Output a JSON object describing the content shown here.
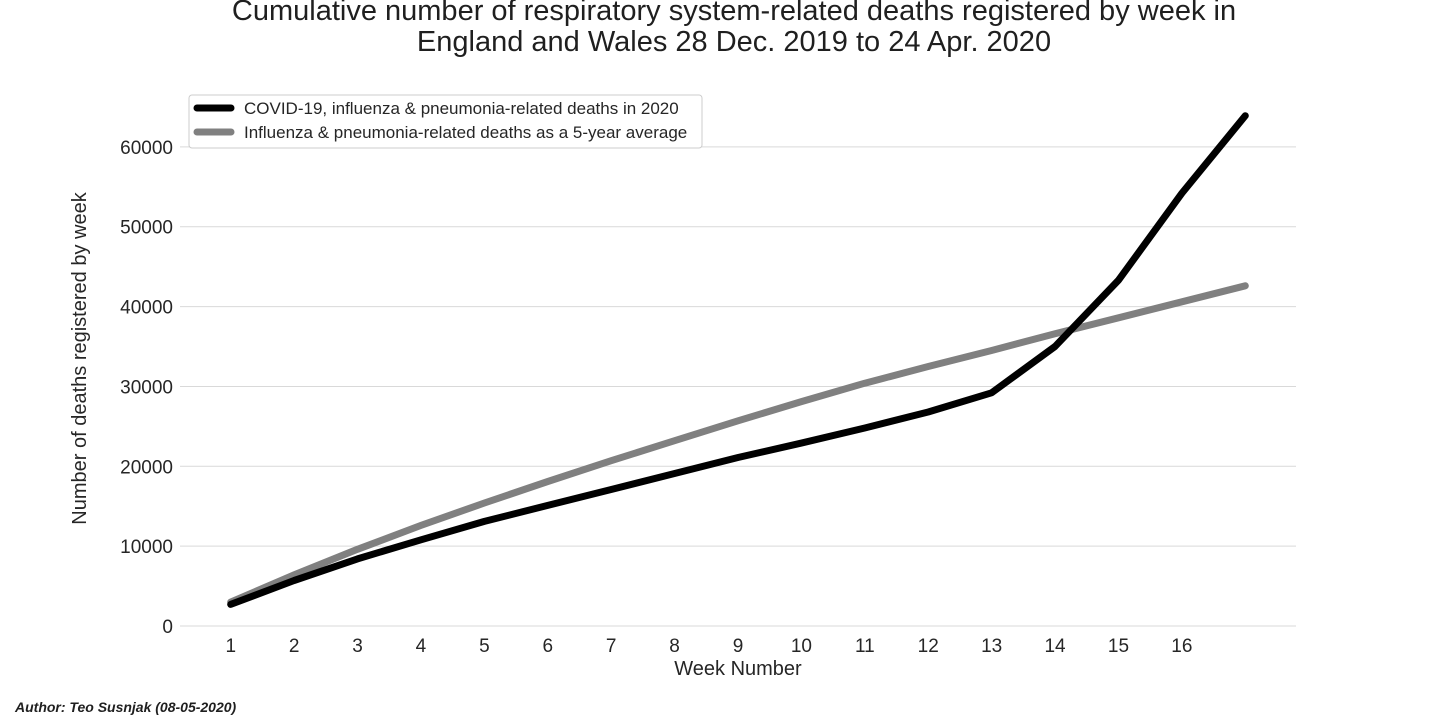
{
  "chart_data": {
    "type": "line",
    "title": "Cumulative number of respiratory system-related deaths registered by week in\nEngland and Wales  28 Dec. 2019 to 24 Apr. 2020",
    "xlabel": "Week Number",
    "ylabel": "Number of deaths registered by week",
    "x_ticks": [
      "1",
      "2",
      "3",
      "4",
      "5",
      "6",
      "7",
      "8",
      "9",
      "10",
      "11",
      "12",
      "13",
      "14",
      "15",
      "16"
    ],
    "y_ticks": [
      0,
      10000,
      20000,
      30000,
      40000,
      50000,
      60000
    ],
    "xlim": [
      0.2,
      17.8
    ],
    "ylim": [
      -500,
      69000
    ],
    "grid": "horizontal",
    "legend_position": "top-left",
    "x": [
      1,
      2,
      3,
      4,
      5,
      6,
      7,
      8,
      9,
      10,
      11,
      12,
      13,
      14,
      15,
      16,
      17
    ],
    "series": [
      {
        "name": "COVID-19, influenza & pneumonia-related deaths in 2020",
        "color": "#000000",
        "values": [
          2700,
          5700,
          8400,
          10800,
          13100,
          15100,
          17100,
          19100,
          21100,
          22900,
          24800,
          26800,
          29200,
          35000,
          43300,
          54200,
          63900
        ]
      },
      {
        "name": "Influenza & pneumonia-related deaths as a 5-year average",
        "color": "#808080",
        "values": [
          3000,
          6400,
          9600,
          12600,
          15400,
          18100,
          20700,
          23200,
          25700,
          28100,
          30400,
          32500,
          34500,
          36600,
          38600,
          40600,
          42600
        ]
      }
    ]
  },
  "author": "Author: Teo Susnjak (08-05-2020)"
}
